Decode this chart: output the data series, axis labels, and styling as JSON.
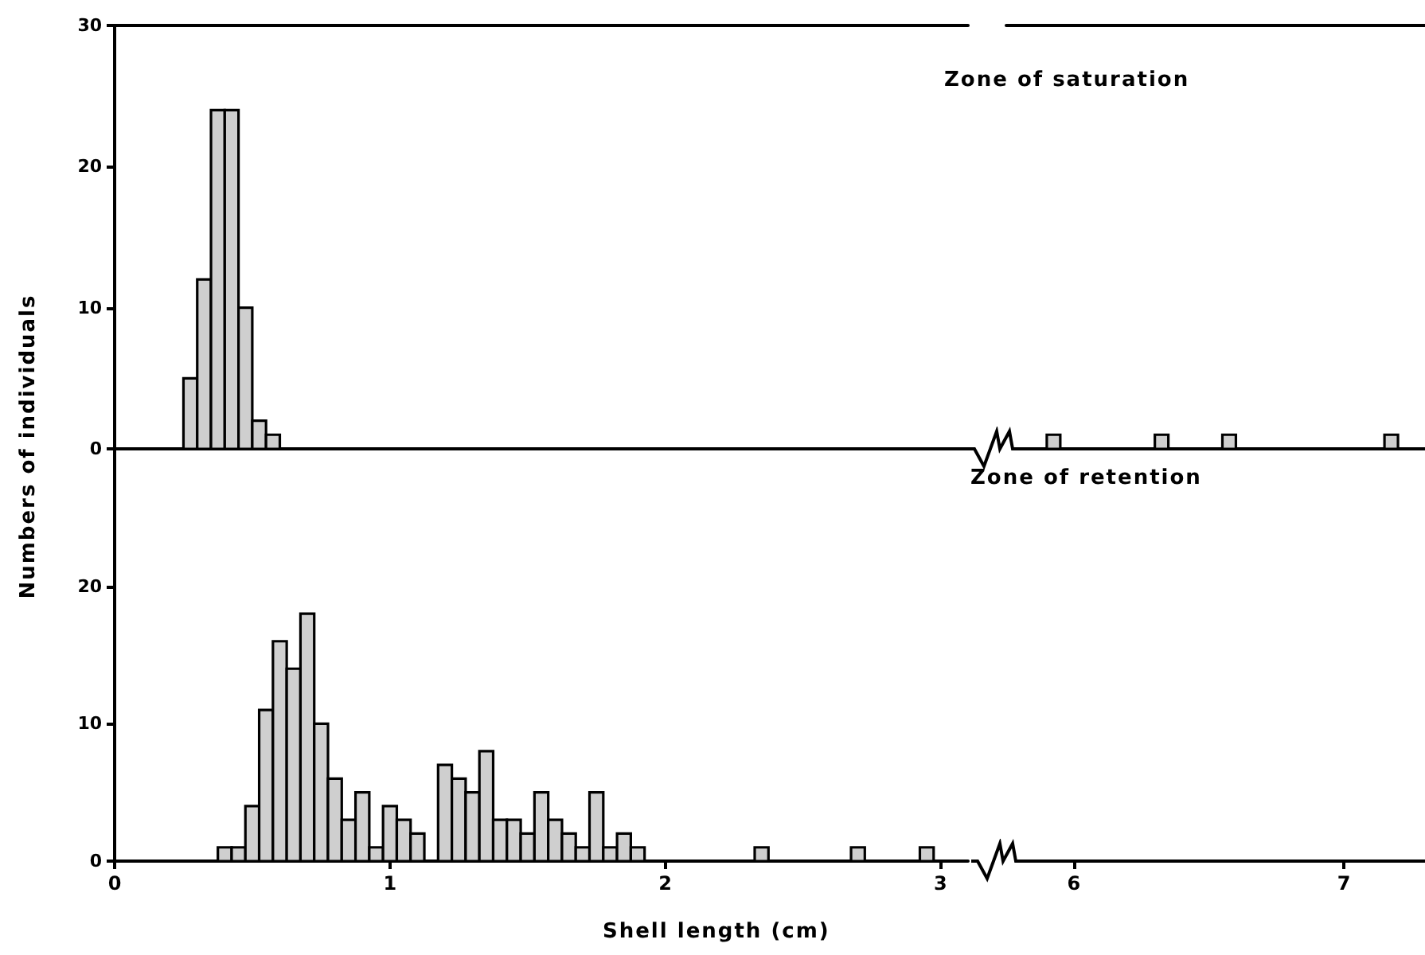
{
  "chart_data": [
    {
      "type": "histogram",
      "annotations": [
        "Zone of saturation"
      ],
      "xlim": [
        0,
        3.1
      ],
      "ylim": [
        0,
        30
      ],
      "yticks": [
        0,
        10,
        20,
        30
      ],
      "tick_labels": "y",
      "color": "#cfcfcf",
      "bins": [
        0.25,
        0.3,
        0.35,
        0.4,
        0.45,
        0.5,
        0.55,
        0.6
      ],
      "values": [
        5,
        12,
        24,
        24,
        10,
        2,
        1
      ]
    },
    {
      "type": "histogram",
      "xlim": [
        5.75,
        7.3
      ],
      "ylim": [
        0,
        30
      ],
      "xticks": [
        6,
        7
      ],
      "tick_labels": false,
      "color": "#cfcfcf",
      "bins": [
        5.9,
        5.95,
        6.3,
        6.35,
        6.55,
        6.6,
        7.15,
        7.2
      ],
      "values": [
        1,
        0,
        1,
        0,
        1,
        0,
        1
      ]
    },
    {
      "type": "histogram",
      "annotations": [
        "Zone of retention"
      ],
      "xlabel": "Shell length (cm)",
      "ylabel": "Numbers of individuals",
      "xlim": [
        0,
        3.1
      ],
      "ylim": [
        0,
        30
      ],
      "xticks": [
        0,
        1,
        2,
        3
      ],
      "yticks": [
        0,
        10,
        20
      ],
      "x2lim": [
        5.75,
        7.3
      ],
      "x2ticks": [
        6,
        7
      ],
      "color": "#cfcfcf",
      "bins": [
        0.375,
        0.425,
        0.475,
        0.525,
        0.575,
        0.625,
        0.675,
        0.725,
        0.775,
        0.825,
        0.875,
        0.925,
        0.975,
        1.025,
        1.075,
        1.125,
        1.175,
        1.225,
        1.275,
        1.325,
        1.375,
        1.425,
        1.475,
        1.525,
        1.575,
        1.625,
        1.675,
        1.725,
        1.775,
        1.825,
        1.875,
        1.925,
        2.325,
        2.375,
        2.675,
        2.725,
        2.925,
        2.975
      ],
      "values": [
        1,
        1,
        4,
        11,
        16,
        14,
        18,
        10,
        6,
        3,
        5,
        1,
        4,
        3,
        2,
        0,
        7,
        6,
        5,
        8,
        3,
        3,
        2,
        5,
        3,
        2,
        1,
        5,
        1,
        2,
        1,
        0,
        1,
        0,
        1,
        0,
        1
      ]
    }
  ]
}
